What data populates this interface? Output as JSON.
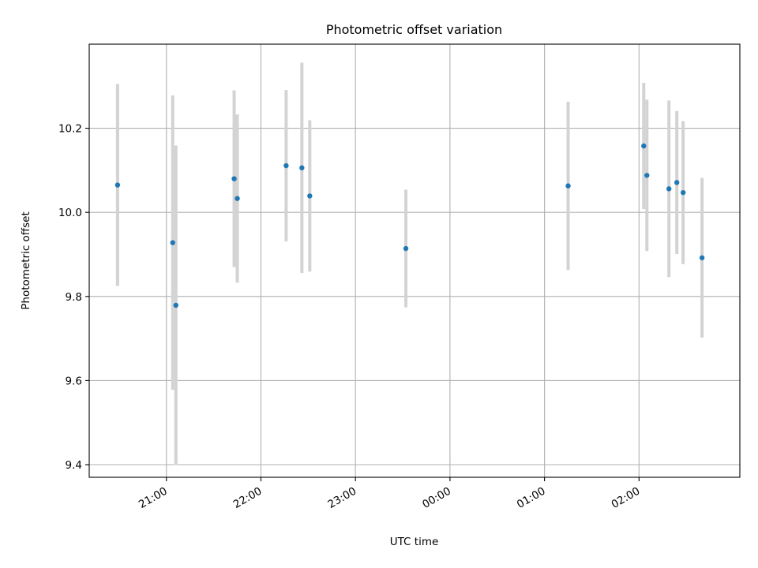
{
  "chart_data": {
    "type": "scatter",
    "title": "Photometric offset variation",
    "xlabel": "UTC time",
    "ylabel": "Photometric offset",
    "xlim": [
      "20:11",
      "27:04"
    ],
    "ylim": [
      9.37,
      10.4
    ],
    "x_ticks": [
      {
        "t": "21:00",
        "label": "21:00"
      },
      {
        "t": "22:00",
        "label": "22:00"
      },
      {
        "t": "23:00",
        "label": "23:00"
      },
      {
        "t": "24:00",
        "label": "00:00"
      },
      {
        "t": "25:00",
        "label": "01:00"
      },
      {
        "t": "26:00",
        "label": "02:00"
      }
    ],
    "y_ticks": [
      9.4,
      9.6,
      9.8,
      10.0,
      10.2
    ],
    "y_tick_labels": [
      "9.4",
      "9.6",
      "9.8",
      "10.0",
      "10.2"
    ],
    "grid": true,
    "colors": {
      "points": "#1f77b4",
      "errorbars": "#d3d3d3",
      "grid": "#b0b0b0"
    },
    "series": [
      {
        "points": [
          {
            "t": "20:29",
            "y": 10.065,
            "err": 0.24
          },
          {
            "t": "21:04",
            "y": 9.928,
            "err": 0.35
          },
          {
            "t": "21:06",
            "y": 9.779,
            "err": 0.38
          },
          {
            "t": "21:43",
            "y": 10.08,
            "err": 0.21
          },
          {
            "t": "21:45",
            "y": 10.033,
            "err": 0.2
          },
          {
            "t": "22:16",
            "y": 10.111,
            "err": 0.18
          },
          {
            "t": "22:26",
            "y": 10.106,
            "err": 0.25
          },
          {
            "t": "22:31",
            "y": 10.039,
            "err": 0.18
          },
          {
            "t": "23:32",
            "y": 9.914,
            "err": 0.14
          },
          {
            "t": "25:15",
            "y": 10.063,
            "err": 0.2
          },
          {
            "t": "26:03",
            "y": 10.158,
            "err": 0.15
          },
          {
            "t": "26:05",
            "y": 10.088,
            "err": 0.18
          },
          {
            "t": "26:19",
            "y": 10.056,
            "err": 0.21
          },
          {
            "t": "26:24",
            "y": 10.071,
            "err": 0.17
          },
          {
            "t": "26:28",
            "y": 10.047,
            "err": 0.17
          },
          {
            "t": "26:40",
            "y": 9.892,
            "err": 0.19
          }
        ]
      }
    ]
  }
}
